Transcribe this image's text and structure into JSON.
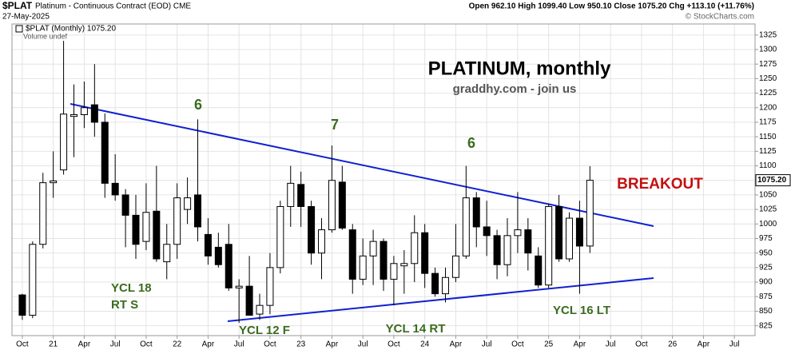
{
  "header": {
    "symbol": "$PLAT",
    "name": "Platinum - Continuous Contract (EOD) CME",
    "date": "27-May-2025",
    "quote": "Open 962.10 High 1099.40 Low 950.10 Close 1075.20 Chg +113.10 (+11.76%)",
    "credit": "© StockCharts.com"
  },
  "chart_data": {
    "type": "candlestick",
    "title": "PLATINUM, monthly",
    "subtitle": "graddhy.com - join us",
    "legend": "$PLAT (Monthly) 1075.20",
    "volume_note": "Volume undef",
    "x": [
      "2020-10",
      "2020-11",
      "2020-12",
      "2021-01",
      "2021-02",
      "2021-03",
      "2021-04",
      "2021-05",
      "2021-06",
      "2021-07",
      "2021-08",
      "2021-09",
      "2021-10",
      "2021-11",
      "2021-12",
      "2022-01",
      "2022-02",
      "2022-03",
      "2022-04",
      "2022-05",
      "2022-06",
      "2022-07",
      "2022-08",
      "2022-09",
      "2022-10",
      "2022-11",
      "2022-12",
      "2023-01",
      "2023-02",
      "2023-03",
      "2023-04",
      "2023-05",
      "2023-06",
      "2023-07",
      "2023-08",
      "2023-09",
      "2023-10",
      "2023-11",
      "2023-12",
      "2024-01",
      "2024-02",
      "2024-03",
      "2024-04",
      "2024-05",
      "2024-06",
      "2024-07",
      "2024-08",
      "2024-09",
      "2024-10",
      "2024-11",
      "2024-12",
      "2025-01",
      "2025-02",
      "2025-03",
      "2025-04",
      "2025-05"
    ],
    "open": [
      878,
      843,
      965,
      1071,
      1093,
      1185,
      1188,
      1205,
      1175,
      1070,
      1050,
      1015,
      970,
      1022,
      935,
      965,
      1025,
      1050,
      982,
      960,
      965,
      890,
      893,
      845,
      860,
      925,
      1030,
      1068,
      1030,
      950,
      990,
      1072,
      990,
      905,
      945,
      970,
      905,
      928,
      932,
      985,
      915,
      880,
      908,
      945,
      1045,
      995,
      980,
      930,
      980,
      990,
      945,
      895,
      1030,
      940,
      1010,
      962.1
    ],
    "high": [
      880,
      970,
      1088,
      1125,
      1315,
      1240,
      1245,
      1275,
      1190,
      1120,
      1060,
      1050,
      1070,
      1100,
      1000,
      1070,
      1080,
      1180,
      1010,
      985,
      1000,
      905,
      945,
      880,
      950,
      1040,
      1100,
      1090,
      1040,
      1010,
      1135,
      1100,
      1000,
      975,
      990,
      975,
      945,
      955,
      1015,
      1000,
      925,
      925,
      1000,
      1100,
      1055,
      1040,
      990,
      1010,
      1055,
      1010,
      960,
      1035,
      1050,
      1020,
      1040,
      1099.4
    ],
    "low": [
      835,
      838,
      958,
      1045,
      1085,
      1115,
      1165,
      1150,
      1045,
      1040,
      960,
      940,
      955,
      935,
      905,
      940,
      1000,
      970,
      930,
      925,
      885,
      830,
      845,
      835,
      845,
      915,
      995,
      995,
      930,
      905,
      985,
      990,
      880,
      895,
      895,
      885,
      860,
      880,
      900,
      890,
      875,
      865,
      900,
      940,
      960,
      945,
      905,
      910,
      950,
      920,
      890,
      890,
      935,
      935,
      880,
      950.1
    ],
    "close": [
      843,
      965,
      1071,
      1074,
      1189,
      1188,
      1200,
      1175,
      1070,
      1050,
      1015,
      965,
      1020,
      940,
      965,
      1045,
      1045,
      995,
      945,
      930,
      890,
      893,
      843,
      860,
      925,
      1030,
      1070,
      1030,
      950,
      990,
      1075,
      993,
      905,
      945,
      970,
      905,
      932,
      932,
      985,
      915,
      880,
      908,
      945,
      1045,
      995,
      980,
      930,
      980,
      990,
      950,
      895,
      1030,
      940,
      1010,
      962,
      1075.2
    ],
    "up_color": "#ffffff",
    "down_color": "#000000",
    "edge_color": "#000000",
    "last_price": {
      "value": 1075.2,
      "label": "1075.20"
    },
    "xlim": [
      "2020-09",
      "2026-09"
    ],
    "xticks": [
      {
        "value": "2020-10",
        "label": "Oct"
      },
      {
        "value": "2021-01",
        "label": "21"
      },
      {
        "value": "2021-04",
        "label": "Apr"
      },
      {
        "value": "2021-07",
        "label": "Jul"
      },
      {
        "value": "2021-10",
        "label": "Oct"
      },
      {
        "value": "2022-01",
        "label": "22"
      },
      {
        "value": "2022-04",
        "label": "Apr"
      },
      {
        "value": "2022-07",
        "label": "Jul"
      },
      {
        "value": "2022-10",
        "label": "Oct"
      },
      {
        "value": "2023-01",
        "label": "23"
      },
      {
        "value": "2023-04",
        "label": "Apr"
      },
      {
        "value": "2023-07",
        "label": "Jul"
      },
      {
        "value": "2023-10",
        "label": "Oct"
      },
      {
        "value": "2024-01",
        "label": "24"
      },
      {
        "value": "2024-04",
        "label": "Apr"
      },
      {
        "value": "2024-07",
        "label": "Jul"
      },
      {
        "value": "2024-10",
        "label": "Oct"
      },
      {
        "value": "2025-01",
        "label": "25"
      },
      {
        "value": "2025-04",
        "label": "Apr"
      },
      {
        "value": "2025-07",
        "label": "Jul"
      },
      {
        "value": "2025-10",
        "label": "Oct"
      },
      {
        "value": "2026-01",
        "label": "26"
      },
      {
        "value": "2026-04",
        "label": "Apr"
      },
      {
        "value": "2026-07",
        "label": "Jul"
      }
    ],
    "ylim": [
      808,
      1344
    ],
    "yticks": [
      825,
      850,
      875,
      900,
      925,
      950,
      975,
      1000,
      1025,
      1050,
      1075,
      1100,
      1125,
      1150,
      1175,
      1200,
      1225,
      1250,
      1275,
      1300,
      1325
    ],
    "grid": true,
    "yaxis_position": "right",
    "annotations": [
      "6",
      "7",
      "6",
      "BREAKOUT",
      "YCL 18",
      "RT S",
      "YCL 12 F",
      "YCL 14 RT",
      "YCL 16 LT"
    ]
  }
}
